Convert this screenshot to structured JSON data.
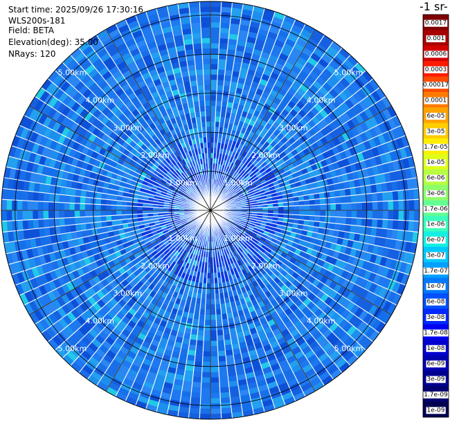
{
  "header": {
    "start_time": "Start time: 2025/09/26 17:30:16",
    "instrument": "WLS200s-181",
    "field": "Field: BETA",
    "elevation": "Elevation(deg): 35.00",
    "nrays": "NRays: 120"
  },
  "colorbar": {
    "title": "-1 sr-",
    "ticks": [
      "0.0017",
      "0.001",
      "0.0006",
      "0.0003",
      "0.00017",
      "0.0001",
      "6e-05",
      "3e-05",
      "1.7e-05",
      "1e-05",
      "6e-06",
      "3e-06",
      "1.7e-06",
      "1e-06",
      "6e-07",
      "3e-07",
      "1.7e-07",
      "1e-07",
      "6e-08",
      "3e-08",
      "1.7e-08",
      "1e-08",
      "6e-09",
      "3e-09",
      "1.7e-09",
      "1e-09"
    ],
    "colors": [
      "#7f0000",
      "#a80000",
      "#d20000",
      "#ff1a00",
      "#ff4b00",
      "#ff7a00",
      "#ffa400",
      "#ffcc00",
      "#ffee00",
      "#e0ff1a",
      "#b6ff41",
      "#8cff6a",
      "#63ff93",
      "#3bffbc",
      "#15f0e2",
      "#00c8ff",
      "#00a0ff",
      "#0078ff",
      "#0050ff",
      "#0028ff",
      "#0000f0",
      "#0000d0",
      "#0000b0",
      "#000090",
      "#000070",
      "#000050"
    ]
  },
  "chart_data": {
    "type": "heatmap",
    "projection": "polar PPI",
    "field": "BETA",
    "elevation_deg": 35.0,
    "n_rays": 120,
    "max_range_km": 5.0,
    "range_ring_labels_km": [
      "1.00km",
      "2.00km",
      "3.00km",
      "4.00km",
      "5.00km"
    ],
    "dominant_color": "#1e78f0",
    "colormap_scale": "log",
    "value_range": [
      1e-09,
      0.0017
    ]
  }
}
